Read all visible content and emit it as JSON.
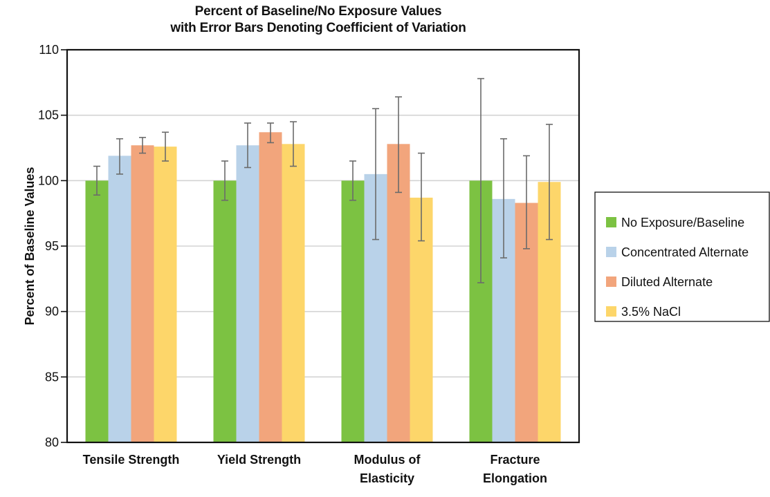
{
  "chart_data": {
    "type": "bar",
    "title": "Percent of Baseline/No Exposure Values",
    "subtitle": "with Error Bars Denoting Coefficient of Variation",
    "xlabel": "",
    "ylabel": "Percent of Baseline Values",
    "ylim": [
      80,
      110
    ],
    "yticks": [
      80,
      85,
      90,
      95,
      100,
      105,
      110
    ],
    "grid": true,
    "legend_position": "right",
    "categories": [
      [
        "Tensile Strength"
      ],
      [
        "Yield Strength"
      ],
      [
        "Modulus of",
        "Elasticity"
      ],
      [
        "Fracture",
        "Elongation"
      ]
    ],
    "series": [
      {
        "name": "No Exposure/Baseline",
        "color": "#7cc242",
        "values": [
          100.0,
          100.0,
          100.0,
          100.0
        ],
        "error_low": [
          98.9,
          98.5,
          98.5,
          92.2
        ],
        "error_high": [
          101.1,
          101.5,
          101.5,
          107.8
        ]
      },
      {
        "name": "Concentrated Alternate",
        "color": "#b9d2e9",
        "values": [
          101.9,
          102.7,
          100.5,
          98.6
        ],
        "error_low": [
          100.5,
          101.0,
          95.5,
          94.1
        ],
        "error_high": [
          103.2,
          104.4,
          105.5,
          103.2
        ]
      },
      {
        "name": "Diluted Alternate",
        "color": "#f2a57c",
        "values": [
          102.7,
          103.7,
          102.8,
          98.3
        ],
        "error_low": [
          102.1,
          102.9,
          99.1,
          94.8
        ],
        "error_high": [
          103.3,
          104.4,
          106.4,
          101.9
        ]
      },
      {
        "name": "3.5% NaCl",
        "color": "#fdd66a",
        "values": [
          102.6,
          102.8,
          98.7,
          99.9
        ],
        "error_low": [
          101.5,
          101.1,
          95.4,
          95.5
        ],
        "error_high": [
          103.7,
          104.5,
          102.1,
          104.3
        ]
      }
    ]
  }
}
